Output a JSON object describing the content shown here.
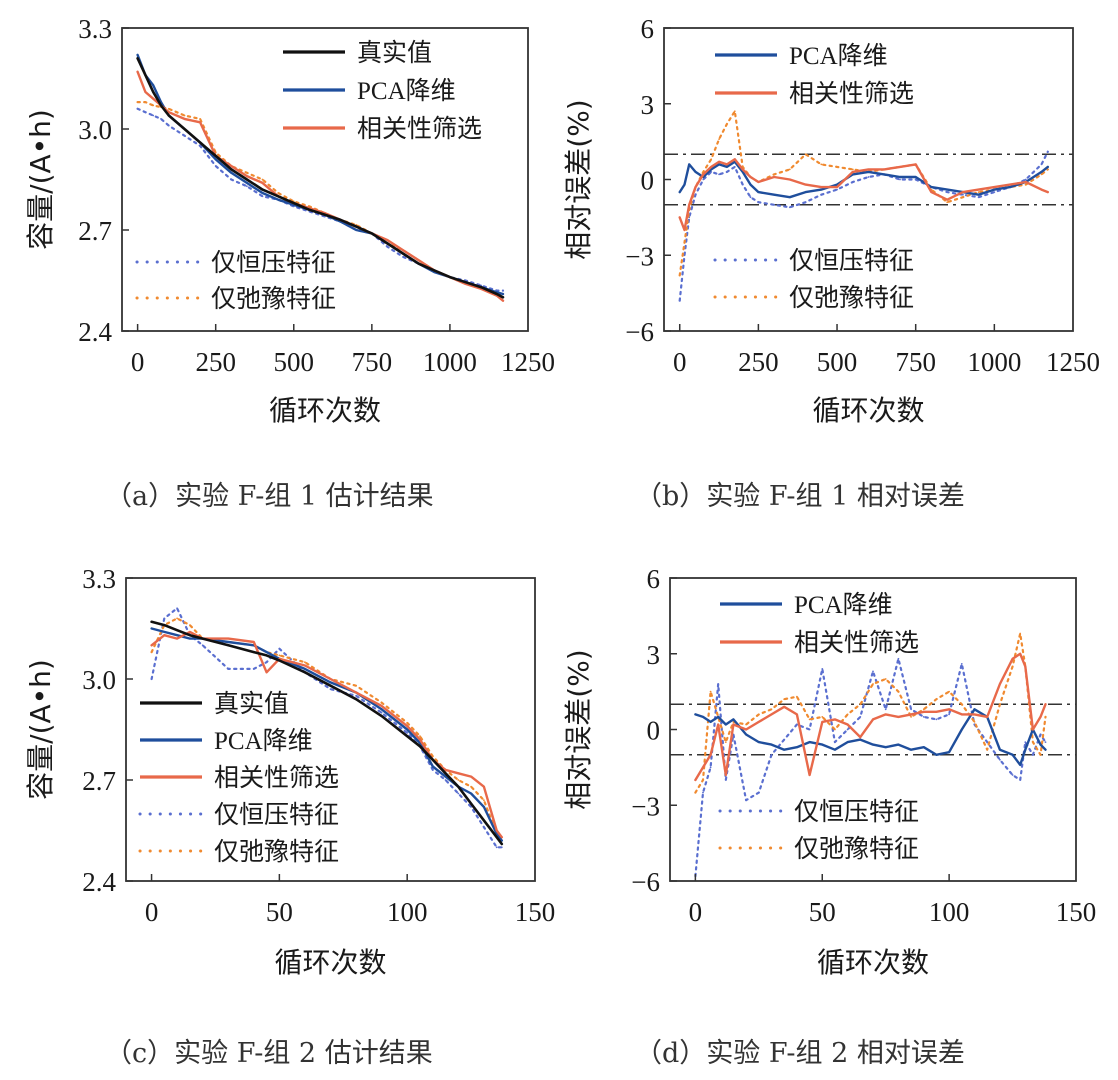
{
  "figure": {
    "series_styles": {
      "true": {
        "label": "真实值",
        "color": "#111111",
        "dash": "solid"
      },
      "pca": {
        "label": "PCA降维",
        "color": "#1f4e9c",
        "dash": "solid"
      },
      "corr": {
        "label": "相关性筛选",
        "color": "#e8694a",
        "dash": "solid"
      },
      "cv_only": {
        "label": "仅恒压特征",
        "color": "#5a6fd0",
        "dash": "dotted"
      },
      "relax_only": {
        "label": "仅弛豫特征",
        "color": "#f08a30",
        "dash": "dotted"
      }
    },
    "reference_line_color": "#333333"
  },
  "chart_data": [
    {
      "id": "a",
      "type": "line",
      "caption": "（a）实验 F-组 1 估计结果",
      "xlabel": "循环次数",
      "ylabel": "容量/(A•h)",
      "xlim": [
        -50,
        1250
      ],
      "ylim": [
        2.4,
        3.3
      ],
      "xticks": [
        0,
        250,
        500,
        750,
        1000,
        1250
      ],
      "xtick_labels": [
        "0",
        "250",
        "500",
        "750",
        "1000",
        "1250"
      ],
      "yticks": [
        2.4,
        2.7,
        3.0,
        3.3
      ],
      "ytick_labels": [
        "2.4",
        "2.7",
        "3.0",
        "3.3"
      ],
      "legend": [
        {
          "key": "true",
          "placement": "top-right"
        },
        {
          "key": "pca",
          "placement": "top-right"
        },
        {
          "key": "corr",
          "placement": "top-right"
        },
        {
          "key": "cv_only",
          "placement": "bottom-left"
        },
        {
          "key": "relax_only",
          "placement": "bottom-left"
        }
      ],
      "x": [
        0,
        25,
        50,
        75,
        100,
        150,
        200,
        250,
        300,
        350,
        400,
        450,
        500,
        550,
        600,
        650,
        700,
        750,
        800,
        850,
        900,
        950,
        1000,
        1050,
        1100,
        1150,
        1170
      ],
      "series": [
        {
          "key": "true",
          "values": [
            3.21,
            3.16,
            3.11,
            3.07,
            3.04,
            3.0,
            2.96,
            2.92,
            2.88,
            2.85,
            2.82,
            2.8,
            2.78,
            2.76,
            2.745,
            2.73,
            2.71,
            2.69,
            2.66,
            2.63,
            2.6,
            2.58,
            2.56,
            2.545,
            2.53,
            2.51,
            2.5
          ]
        },
        {
          "key": "pca",
          "values": [
            3.22,
            3.16,
            3.13,
            3.08,
            3.04,
            3.0,
            2.96,
            2.91,
            2.87,
            2.84,
            2.81,
            2.79,
            2.775,
            2.76,
            2.745,
            2.725,
            2.7,
            2.69,
            2.66,
            2.63,
            2.6,
            2.575,
            2.56,
            2.545,
            2.53,
            2.515,
            2.51
          ]
        },
        {
          "key": "corr",
          "values": [
            3.17,
            3.11,
            3.09,
            3.07,
            3.05,
            3.03,
            3.02,
            2.92,
            2.89,
            2.86,
            2.84,
            2.8,
            2.78,
            2.765,
            2.75,
            2.73,
            2.71,
            2.69,
            2.67,
            2.64,
            2.61,
            2.58,
            2.56,
            2.54,
            2.525,
            2.505,
            2.49
          ]
        },
        {
          "key": "cv_only",
          "values": [
            3.06,
            3.05,
            3.04,
            3.03,
            3.01,
            2.98,
            2.95,
            2.89,
            2.85,
            2.83,
            2.8,
            2.79,
            2.77,
            2.755,
            2.74,
            2.725,
            2.7,
            2.69,
            2.65,
            2.62,
            2.6,
            2.58,
            2.56,
            2.55,
            2.535,
            2.52,
            2.52
          ]
        },
        {
          "key": "relax_only",
          "values": [
            3.08,
            3.08,
            3.07,
            3.065,
            3.06,
            3.04,
            3.03,
            2.93,
            2.89,
            2.87,
            2.85,
            2.81,
            2.785,
            2.77,
            2.75,
            2.73,
            2.715,
            2.69,
            2.66,
            2.64,
            2.61,
            2.58,
            2.56,
            2.545,
            2.53,
            2.51,
            2.49
          ]
        }
      ]
    },
    {
      "id": "b",
      "type": "line",
      "caption": "（b）实验 F-组 1 相对误差",
      "xlabel": "循环次数",
      "ylabel": "相对误差(%)",
      "xlim": [
        -50,
        1250
      ],
      "ylim": [
        -6,
        6
      ],
      "xticks": [
        0,
        250,
        500,
        750,
        1000,
        1250
      ],
      "xtick_labels": [
        "0",
        "250",
        "500",
        "750",
        "1000",
        "1250"
      ],
      "yticks": [
        -6,
        -3,
        0,
        3,
        6
      ],
      "ytick_labels": [
        "−6",
        "−3",
        "0",
        "3",
        "6"
      ],
      "reference_lines": [
        1,
        -1
      ],
      "legend": [
        {
          "key": "pca",
          "placement": "top"
        },
        {
          "key": "corr",
          "placement": "top"
        },
        {
          "key": "cv_only",
          "placement": "bottom"
        },
        {
          "key": "relax_only",
          "placement": "bottom"
        }
      ],
      "x": [
        0,
        15,
        30,
        50,
        75,
        100,
        125,
        150,
        175,
        200,
        225,
        250,
        300,
        350,
        400,
        450,
        500,
        550,
        600,
        650,
        700,
        750,
        800,
        850,
        900,
        950,
        1000,
        1050,
        1100,
        1150,
        1170
      ],
      "series": [
        {
          "key": "pca",
          "values": [
            -0.5,
            -0.2,
            0.6,
            0.3,
            0.1,
            0.4,
            0.6,
            0.5,
            0.7,
            0.3,
            -0.2,
            -0.5,
            -0.6,
            -0.7,
            -0.5,
            -0.4,
            -0.2,
            0.2,
            0.3,
            0.2,
            0.1,
            0.1,
            -0.3,
            -0.4,
            -0.5,
            -0.6,
            -0.4,
            -0.3,
            -0.1,
            0.3,
            0.5
          ]
        },
        {
          "key": "corr",
          "values": [
            -1.5,
            -2.0,
            -1.0,
            -0.3,
            0.2,
            0.5,
            0.7,
            0.6,
            0.8,
            0.4,
            0.1,
            -0.1,
            0.1,
            0.0,
            -0.2,
            -0.3,
            -0.3,
            0.3,
            0.4,
            0.4,
            0.5,
            0.6,
            -0.5,
            -0.8,
            -0.5,
            -0.4,
            -0.3,
            -0.2,
            -0.1,
            -0.4,
            -0.5
          ]
        },
        {
          "key": "cv_only",
          "values": [
            -4.8,
            -3.0,
            -1.5,
            -0.6,
            0.0,
            0.3,
            0.2,
            0.3,
            0.5,
            -0.2,
            -0.7,
            -0.9,
            -1.0,
            -1.1,
            -0.9,
            -0.6,
            -0.4,
            -0.1,
            0.1,
            0.2,
            0.0,
            0.0,
            -0.3,
            -0.5,
            -0.6,
            -0.7,
            -0.5,
            -0.3,
            0.0,
            0.6,
            1.1
          ]
        },
        {
          "key": "relax_only",
          "values": [
            -3.8,
            -2.5,
            -1.2,
            -0.3,
            0.3,
            0.8,
            1.6,
            2.2,
            2.7,
            0.5,
            0.1,
            -0.1,
            0.2,
            0.4,
            1.0,
            0.6,
            0.5,
            0.4,
            0.3,
            0.4,
            0.5,
            0.6,
            -0.4,
            -0.9,
            -0.7,
            -0.5,
            -0.4,
            -0.3,
            -0.2,
            0.2,
            0.4
          ]
        }
      ]
    },
    {
      "id": "c",
      "type": "line",
      "caption": "（c）实验 F-组 2 估计结果",
      "xlabel": "循环次数",
      "ylabel": "容量/(A•h)",
      "xlim": [
        -10,
        150
      ],
      "ylim": [
        2.4,
        3.3
      ],
      "xticks": [
        0,
        50,
        100,
        150
      ],
      "xtick_labels": [
        "0",
        "50",
        "100",
        "150"
      ],
      "yticks": [
        2.4,
        2.7,
        3.0,
        3.3
      ],
      "ytick_labels": [
        "2.4",
        "2.7",
        "3.0",
        "3.3"
      ],
      "legend": [
        {
          "key": "true",
          "placement": "bottom-left"
        },
        {
          "key": "pca",
          "placement": "bottom-left"
        },
        {
          "key": "corr",
          "placement": "bottom-left"
        },
        {
          "key": "cv_only",
          "placement": "bottom-left"
        },
        {
          "key": "relax_only",
          "placement": "bottom-left"
        }
      ],
      "x": [
        0,
        5,
        10,
        15,
        20,
        30,
        40,
        45,
        50,
        60,
        70,
        80,
        90,
        100,
        105,
        110,
        115,
        120,
        125,
        130,
        135,
        137
      ],
      "series": [
        {
          "key": "true",
          "values": [
            3.17,
            3.16,
            3.145,
            3.13,
            3.12,
            3.1,
            3.08,
            3.07,
            3.055,
            3.02,
            2.98,
            2.94,
            2.89,
            2.83,
            2.8,
            2.76,
            2.72,
            2.68,
            2.63,
            2.58,
            2.53,
            2.51
          ]
        },
        {
          "key": "pca",
          "values": [
            3.15,
            3.14,
            3.13,
            3.12,
            3.12,
            3.11,
            3.1,
            3.08,
            3.06,
            3.03,
            2.99,
            2.96,
            2.91,
            2.85,
            2.81,
            2.74,
            2.71,
            2.68,
            2.66,
            2.62,
            2.54,
            2.52
          ]
        },
        {
          "key": "corr",
          "values": [
            3.1,
            3.13,
            3.12,
            3.14,
            3.12,
            3.12,
            3.11,
            3.02,
            3.06,
            3.04,
            3.0,
            2.96,
            2.92,
            2.86,
            2.82,
            2.76,
            2.73,
            2.72,
            2.71,
            2.68,
            2.55,
            2.53
          ]
        },
        {
          "key": "cv_only",
          "values": [
            3.0,
            3.18,
            3.21,
            3.13,
            3.1,
            3.03,
            3.03,
            3.05,
            3.09,
            3.02,
            2.97,
            2.95,
            2.9,
            2.84,
            2.8,
            2.73,
            2.7,
            2.66,
            2.62,
            2.56,
            2.5,
            2.5
          ]
        },
        {
          "key": "relax_only",
          "values": [
            3.08,
            3.16,
            3.18,
            3.16,
            3.12,
            3.11,
            3.1,
            3.08,
            3.07,
            3.05,
            3.0,
            2.98,
            2.93,
            2.87,
            2.83,
            2.77,
            2.73,
            2.7,
            2.68,
            2.64,
            2.54,
            2.52
          ]
        }
      ]
    },
    {
      "id": "d",
      "type": "line",
      "caption": "（d）实验 F-组 2 相对误差",
      "xlabel": "循环次数",
      "ylabel": "相对误差(%)",
      "xlim": [
        -10,
        150
      ],
      "ylim": [
        -6,
        6
      ],
      "xticks": [
        0,
        50,
        100,
        150
      ],
      "xtick_labels": [
        "0",
        "50",
        "100",
        "150"
      ],
      "yticks": [
        -6,
        -3,
        0,
        3,
        6
      ],
      "ytick_labels": [
        "−6",
        "−3",
        "0",
        "3",
        "6"
      ],
      "reference_lines": [
        1,
        -1
      ],
      "legend": [
        {
          "key": "pca",
          "placement": "top"
        },
        {
          "key": "corr",
          "placement": "top"
        },
        {
          "key": "cv_only",
          "placement": "bottom"
        },
        {
          "key": "relax_only",
          "placement": "bottom"
        }
      ],
      "x": [
        0,
        3,
        6,
        9,
        12,
        15,
        20,
        25,
        30,
        35,
        40,
        45,
        50,
        55,
        60,
        65,
        70,
        75,
        80,
        85,
        90,
        95,
        100,
        105,
        110,
        115,
        120,
        125,
        128,
        130,
        133,
        136,
        138
      ],
      "series": [
        {
          "key": "pca",
          "values": [
            0.6,
            0.5,
            0.3,
            0.5,
            0.2,
            0.4,
            -0.2,
            -0.5,
            -0.6,
            -0.8,
            -0.7,
            -0.5,
            -0.6,
            -0.8,
            -0.5,
            -0.4,
            -0.6,
            -0.7,
            -0.6,
            -0.8,
            -0.7,
            -1.0,
            -0.9,
            0.0,
            0.8,
            0.5,
            -0.8,
            -1.0,
            -1.4,
            -0.8,
            0.0,
            -0.6,
            -0.8
          ]
        },
        {
          "key": "corr",
          "values": [
            -2.0,
            -1.5,
            -1.0,
            0.2,
            -1.8,
            0.2,
            0.0,
            0.3,
            0.6,
            0.9,
            0.6,
            -1.8,
            0.3,
            0.4,
            0.2,
            -0.3,
            0.4,
            0.6,
            0.5,
            0.6,
            0.7,
            0.7,
            0.8,
            0.6,
            0.6,
            0.5,
            1.8,
            2.8,
            3.0,
            2.5,
            0.0,
            0.5,
            1.0
          ]
        },
        {
          "key": "cv_only",
          "values": [
            -5.8,
            -2.5,
            -1.5,
            1.8,
            -2.0,
            -0.2,
            -2.8,
            -2.5,
            -1.0,
            -0.4,
            0.2,
            0.0,
            2.4,
            -0.5,
            0.0,
            0.5,
            2.3,
            0.8,
            2.8,
            0.8,
            0.5,
            0.4,
            0.6,
            2.6,
            0.2,
            -0.5,
            -1.2,
            -1.8,
            -2.0,
            -0.5,
            -1.0,
            -0.2,
            -0.5
          ]
        },
        {
          "key": "relax_only",
          "values": [
            -2.5,
            -2.0,
            1.5,
            0.5,
            -0.5,
            0.3,
            0.2,
            0.6,
            0.8,
            1.2,
            1.3,
            0.4,
            0.5,
            0.0,
            0.6,
            1.0,
            1.8,
            2.0,
            1.5,
            0.5,
            0.8,
            1.2,
            1.5,
            1.0,
            0.3,
            -0.8,
            1.0,
            2.5,
            3.8,
            2.5,
            -0.5,
            -1.0,
            0.5
          ]
        }
      ]
    }
  ]
}
